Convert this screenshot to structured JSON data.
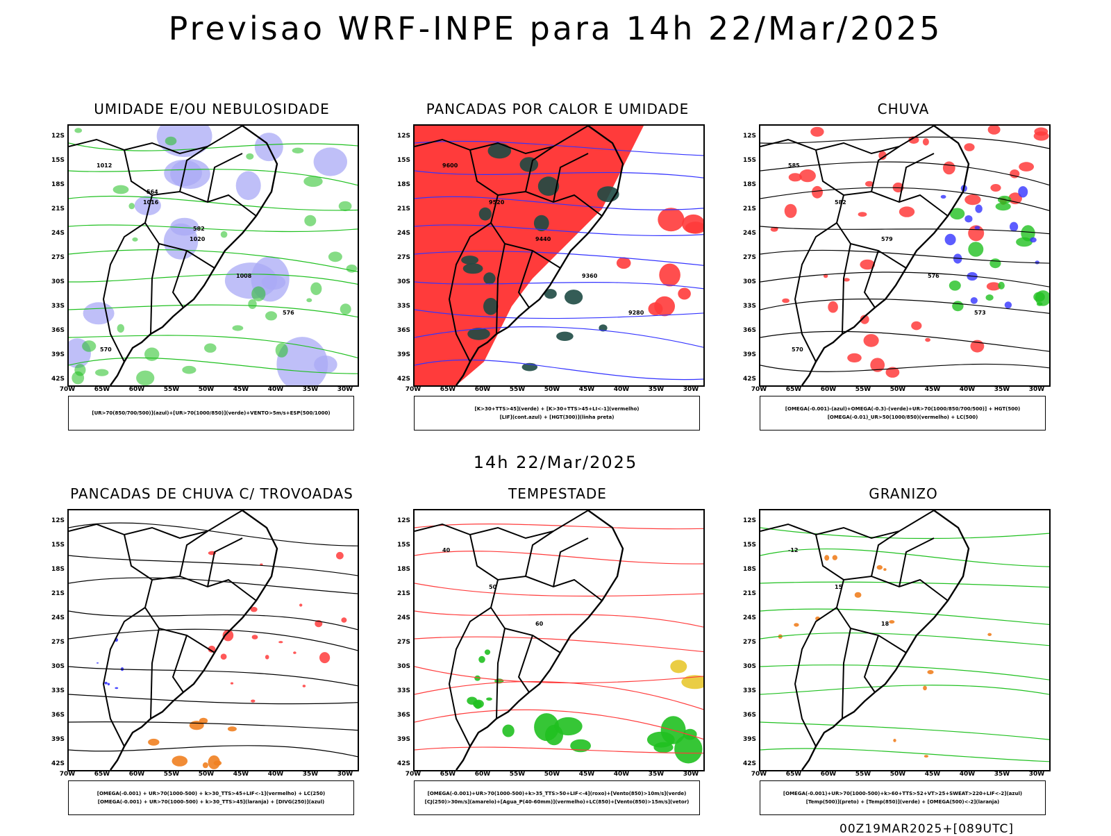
{
  "title": "Previsao WRF-INPE  para 14h 22/Mar/2025",
  "mid_title": "14h 22/Mar/2025",
  "footer": "00Z19MAR2025+[089UTC]",
  "axes": {
    "lat_labels": [
      "12S",
      "15S",
      "18S",
      "21S",
      "24S",
      "27S",
      "30S",
      "33S",
      "36S",
      "39S",
      "42S"
    ],
    "lon_labels": [
      "70W",
      "65W",
      "60W",
      "55W",
      "50W",
      "45W",
      "40W",
      "35W",
      "30W"
    ]
  },
  "colors": {
    "red": "#ff3b3b",
    "green": "#20c020",
    "blue": "#3333ff",
    "lavender": "#aaaaf5",
    "darkteal": "#1e4a44",
    "orange": "#f08020",
    "yellow": "#e8c830"
  },
  "panels": [
    {
      "title": "UMIDADE E/OU NEBULOSIDADE",
      "legend_lines": [
        "[UR>70(850/700/500)](azul)+[UR>70(1000/850)](verde)+VENTO>5m/s+ESP(500/1000)"
      ],
      "contour_labels": [
        "1012",
        "1016",
        "1020",
        "1008",
        "576",
        "570",
        "564",
        "582"
      ]
    },
    {
      "title": "PANCADAS POR CALOR E UMIDADE",
      "legend_lines": [
        "[K>30+TTS>45](verde) + [K>30+TTS>45+LI<-1](vermelho)",
        "[LIF](cont.azul) + [HGT(300)](linha preta)"
      ],
      "contour_labels": [
        "9600",
        "9520",
        "9440",
        "9360",
        "9280"
      ]
    },
    {
      "title": "CHUVA",
      "legend_lines": [
        "[OMEGA(-0.001)-(azul)+OMEGA(-0.3)-(verde)+UR>70(1000/850/700/500)] + HGT(500)",
        "[OMEGA(-0.01)_UR>50(1000/850)(vermelho) + LC(500)"
      ],
      "contour_labels": [
        "585",
        "582",
        "579",
        "576",
        "573",
        "570"
      ]
    },
    {
      "title": "PANCADAS DE CHUVA C/ TROVOADAS",
      "legend_lines": [
        "[OMEGA(-0.001) + UR>70(1000-500) + k>30_TTS>45+LIF<-1](vermelho) + LC(250)",
        "[OMEGA(-0.001) + UR>70(1000-500) + k>30_TTS>45](laranja) + [DIVG(250)](azul)"
      ],
      "contour_labels": []
    },
    {
      "title": "TEMPESTADE",
      "legend_lines": [
        "[OMEGA(-0.001)+UR>70(1000-500)+k>35_TTS>50+LIF<-4](roxo)+[Vento(850)>10m/s](verde)",
        "[CJ(250)>30m/s](amarelo)+[Agua_P(40-60mm)](vermelho)+LC(850)+[Vento(850)>15m/s](vetor)"
      ],
      "contour_labels": [
        "40",
        "50",
        "60"
      ]
    },
    {
      "title": "GRANIZO",
      "legend_lines": [
        "[OMEGA(-0.001)+UR>70(1000-500)+k>60+TTS>52+VT>25+SWEAT>220+LIF<-2](azul)",
        "[Temp(500)](preto) + [Temp(850)](verde) + [OMEGA(500)<-2](laranja)"
      ],
      "contour_labels": [
        "-12",
        "15",
        "18"
      ]
    }
  ]
}
